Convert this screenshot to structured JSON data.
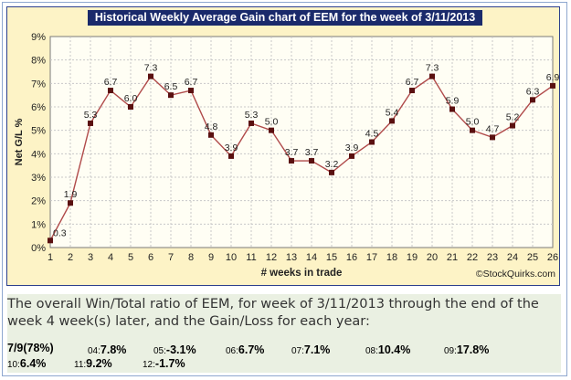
{
  "chart_data": {
    "type": "line",
    "title": "Historical Weekly Average Gain chart of EEM for the week of 3/11/2013",
    "xlabel": "# weeks in trade",
    "ylabel": "Net G/L %",
    "watermark": "©StockQuirks.com",
    "x": [
      1,
      2,
      3,
      4,
      5,
      6,
      7,
      8,
      9,
      10,
      11,
      12,
      13,
      14,
      15,
      16,
      17,
      18,
      19,
      20,
      21,
      22,
      23,
      24,
      25,
      26
    ],
    "values": [
      0.3,
      1.9,
      5.3,
      6.7,
      6.0,
      7.3,
      6.5,
      6.7,
      4.8,
      3.9,
      5.3,
      5.0,
      3.7,
      3.7,
      3.2,
      3.9,
      4.5,
      5.4,
      6.7,
      7.3,
      5.9,
      5.0,
      4.7,
      5.2,
      6.3,
      6.9
    ],
    "point_labels": [
      "0.3",
      "1.9",
      "5.3",
      "6.7",
      "6.0",
      "7.3",
      "6.5",
      "6.7",
      "4.8",
      "3.9",
      "5.3",
      "5.0",
      "3.7",
      "3.7",
      "3.2",
      "3.9",
      "4.5",
      "5.4",
      "6.7",
      "7.3",
      "5.9",
      "5.0",
      "4.7",
      "5.2",
      "6.3",
      "6.9"
    ],
    "y_ticks": [
      "0%",
      "1%",
      "2%",
      "3%",
      "4%",
      "5%",
      "6%",
      "7%",
      "8%",
      "9%"
    ],
    "x_ticks": [
      "1",
      "2",
      "3",
      "4",
      "5",
      "6",
      "7",
      "8",
      "9",
      "10",
      "11",
      "12",
      "13",
      "14",
      "15",
      "16",
      "17",
      "18",
      "19",
      "20",
      "21",
      "22",
      "23",
      "24",
      "25",
      "26"
    ],
    "ylim": [
      0,
      9
    ],
    "xlim": [
      1,
      26
    ],
    "grid": true,
    "colors": {
      "line": "#b04a4a",
      "marker": "#5a1010",
      "background": "#fdf3c6",
      "title_bg": "#1a2a6b"
    }
  },
  "summary": {
    "text": "The overall Win/Total ratio of EEM, for week of 3/11/2013 through the end of the week 4 week(s) later, and the Gain/Loss for each year:",
    "ratio": "7/9(78%)",
    "years": [
      {
        "year": "04:",
        "value": "7.8%"
      },
      {
        "year": "05:",
        "value": "-3.1%"
      },
      {
        "year": "06:",
        "value": "6.7%"
      },
      {
        "year": "07:",
        "value": "7.1%"
      },
      {
        "year": "08:",
        "value": "10.4%"
      },
      {
        "year": "09:",
        "value": "17.8%"
      },
      {
        "year": "10:",
        "value": "6.4%"
      },
      {
        "year": "11:",
        "value": "9.2%"
      },
      {
        "year": "12:",
        "value": "-1.7%"
      }
    ]
  }
}
